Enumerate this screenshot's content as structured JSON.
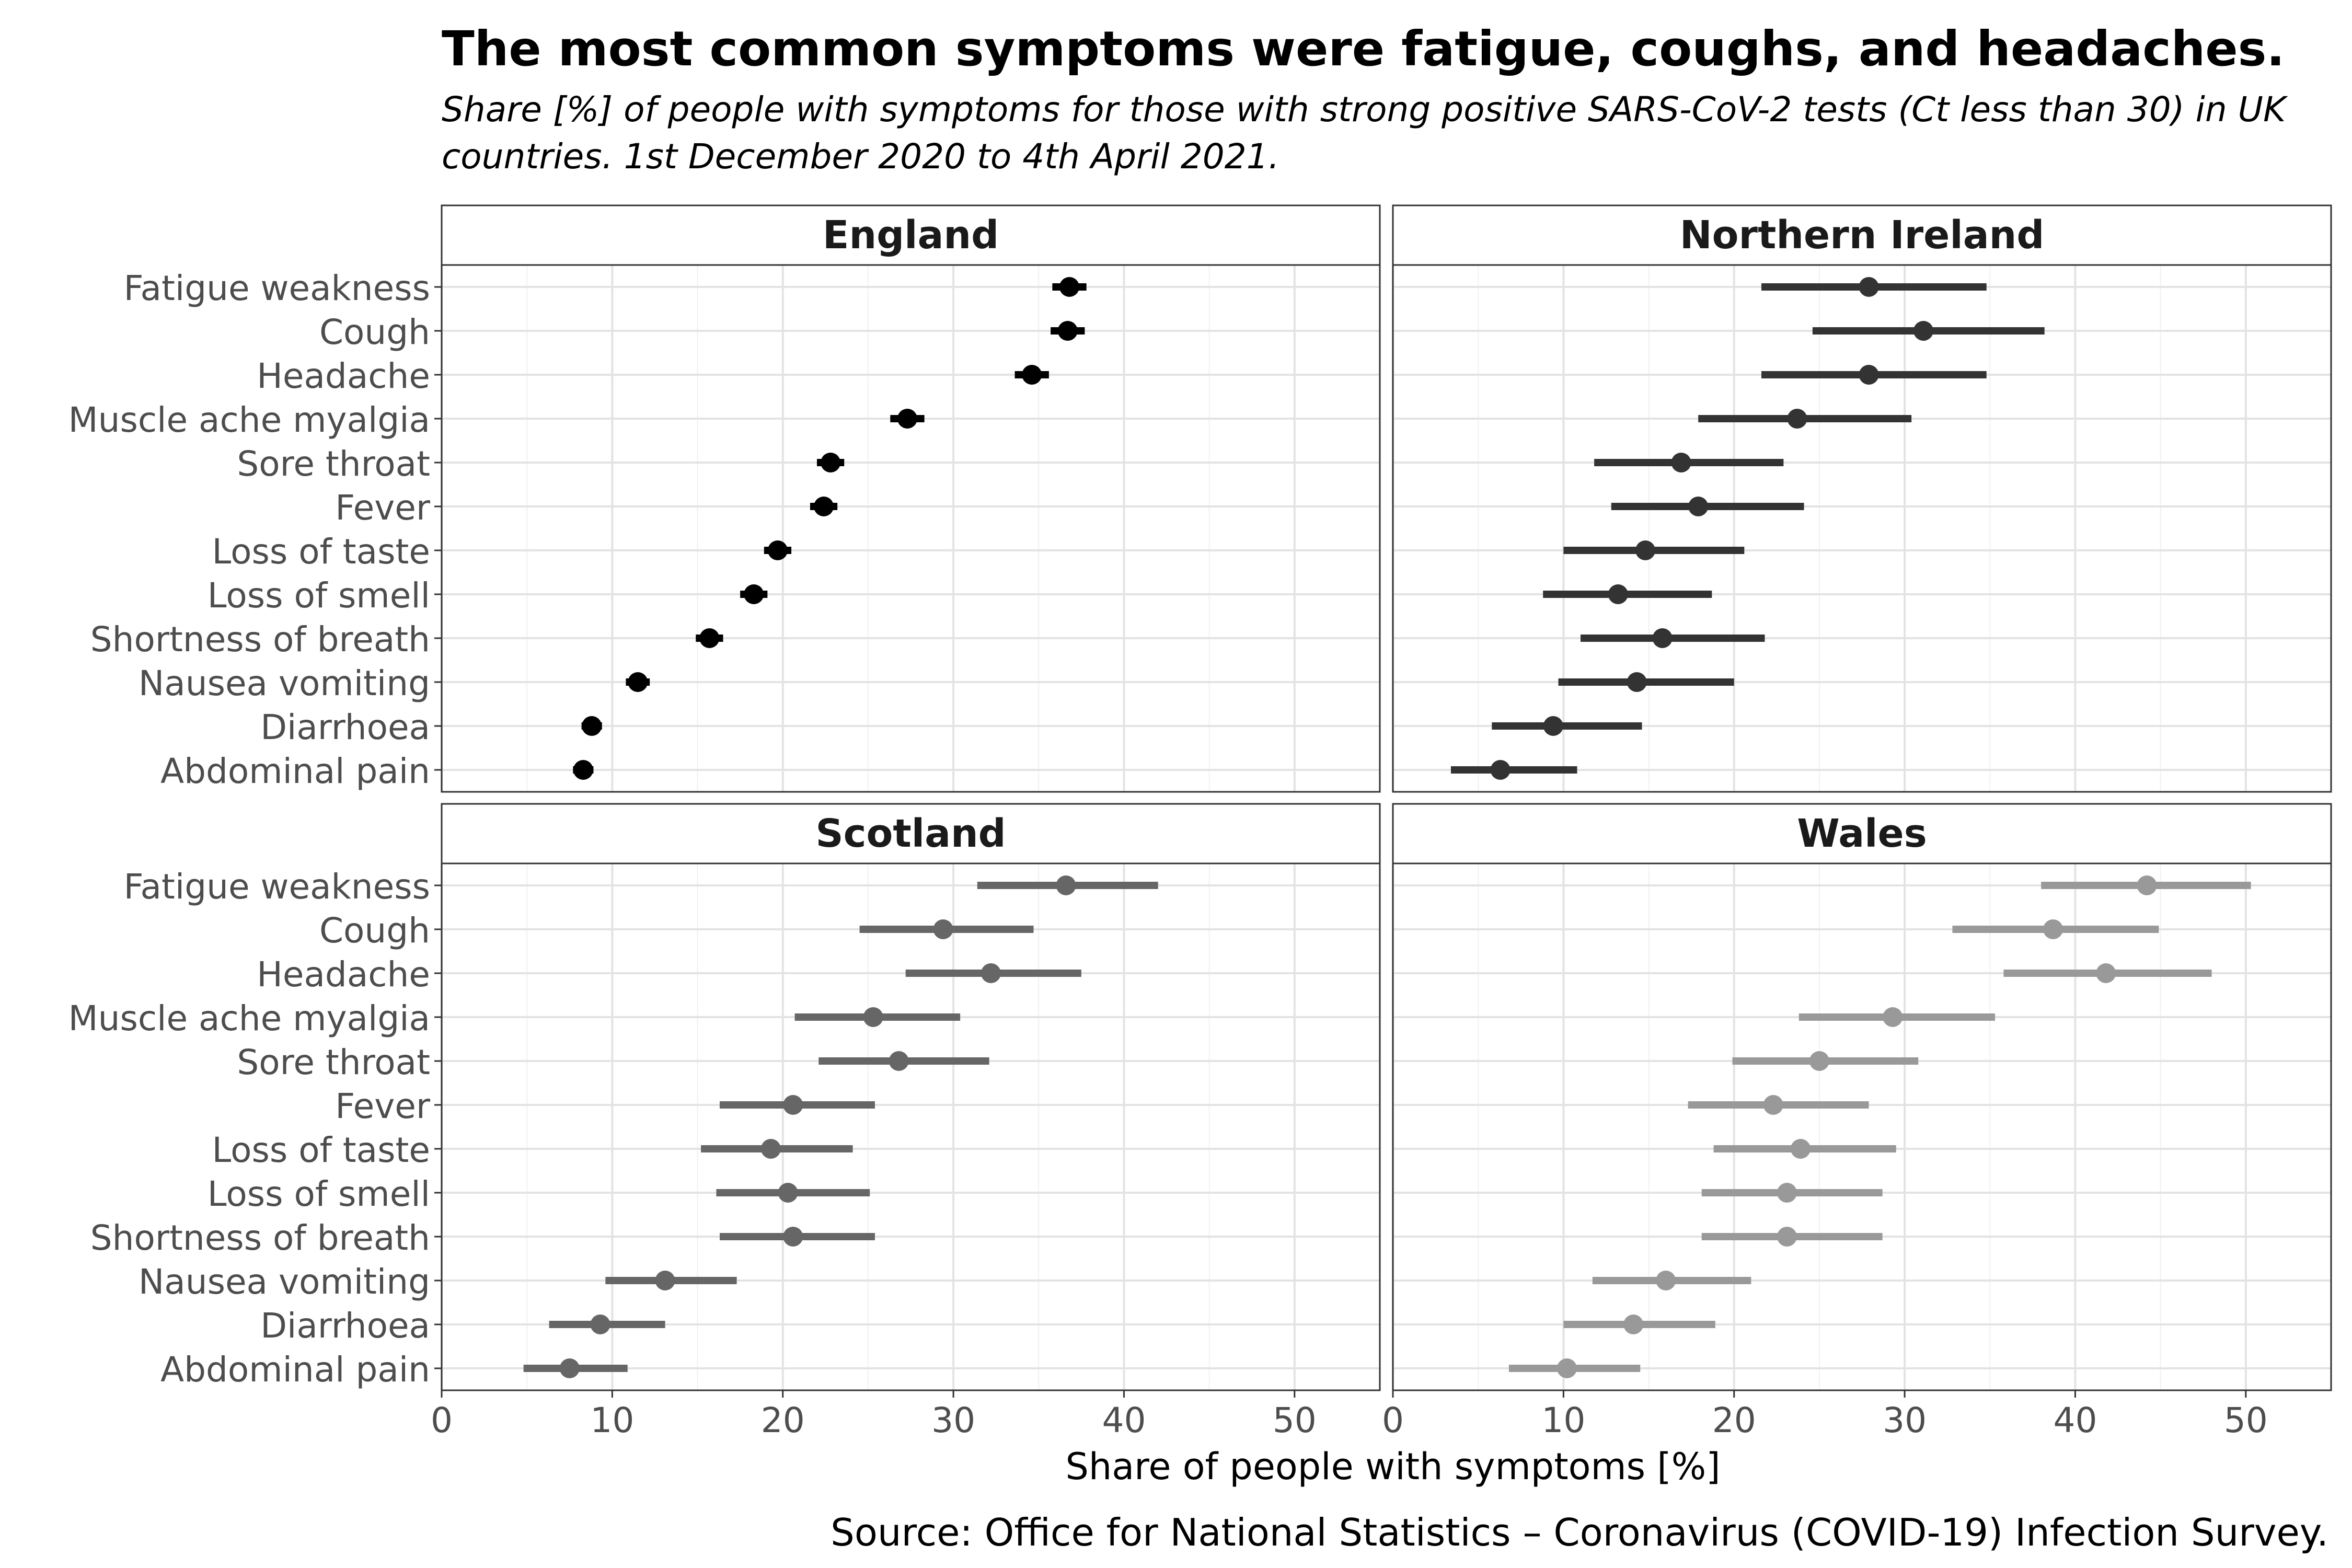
{
  "title": "The most common symptoms were fatigue, coughs, and headaches.",
  "subtitle": "Share [%] of people with symptoms for those with strong positive SARS-CoV-2 tests (Ct less than 30) in UK countries. 1st December 2020 to 4th April 2021.",
  "source": "Source: Office for National Statistics – Coronavirus (COVID-19) Infection Survey.",
  "chart_data": {
    "type": "dot-errorbar",
    "xlabel": "Share of people with symptoms [%]",
    "xlim": [
      0,
      55
    ],
    "xticks": [
      0,
      10,
      20,
      30,
      40,
      50
    ],
    "grid": true,
    "categories": [
      "Fatigue weakness",
      "Cough",
      "Headache",
      "Muscle ache myalgia",
      "Sore throat",
      "Fever",
      "Loss of taste",
      "Loss of smell",
      "Shortness of breath",
      "Nausea vomiting",
      "Diarrhoea",
      "Abdominal pain"
    ],
    "panels": [
      {
        "name": "England",
        "color": "#000000",
        "values": [
          36.8,
          36.7,
          34.6,
          27.3,
          22.8,
          22.4,
          19.7,
          18.3,
          15.7,
          11.5,
          8.8,
          8.3
        ],
        "lower": [
          35.8,
          35.7,
          33.6,
          26.3,
          22.0,
          21.6,
          18.9,
          17.5,
          14.9,
          10.8,
          8.2,
          7.7
        ],
        "upper": [
          37.8,
          37.7,
          35.6,
          28.3,
          23.6,
          23.2,
          20.5,
          19.1,
          16.5,
          12.2,
          9.4,
          8.9
        ]
      },
      {
        "name": "Northern Ireland",
        "color": "#333333",
        "values": [
          27.9,
          31.1,
          27.9,
          23.7,
          16.9,
          17.9,
          14.8,
          13.2,
          15.8,
          14.3,
          9.4,
          6.3
        ],
        "lower": [
          21.6,
          24.6,
          21.6,
          17.9,
          11.8,
          12.8,
          10.0,
          8.8,
          11.0,
          9.7,
          5.8,
          3.4
        ],
        "upper": [
          34.8,
          38.2,
          34.8,
          30.4,
          22.9,
          24.1,
          20.6,
          18.7,
          21.8,
          20.0,
          14.6,
          10.8
        ]
      },
      {
        "name": "Scotland",
        "color": "#666666",
        "values": [
          36.6,
          29.4,
          32.2,
          25.3,
          26.8,
          20.6,
          19.3,
          20.3,
          20.6,
          13.1,
          9.3,
          7.5
        ],
        "lower": [
          31.4,
          24.5,
          27.2,
          20.7,
          22.1,
          16.3,
          15.2,
          16.1,
          16.3,
          9.6,
          6.3,
          4.8
        ],
        "upper": [
          42.0,
          34.7,
          37.5,
          30.4,
          32.1,
          25.4,
          24.1,
          25.1,
          25.4,
          17.3,
          13.1,
          10.9
        ]
      },
      {
        "name": "Wales",
        "color": "#999999",
        "values": [
          44.2,
          38.7,
          41.8,
          29.3,
          25.0,
          22.3,
          23.9,
          23.1,
          23.1,
          16.0,
          14.1,
          10.2
        ],
        "lower": [
          38.0,
          32.8,
          35.8,
          23.8,
          19.9,
          17.3,
          18.8,
          18.1,
          18.1,
          11.7,
          10.0,
          6.8
        ],
        "upper": [
          50.3,
          44.9,
          48.0,
          35.3,
          30.8,
          27.9,
          29.5,
          28.7,
          28.7,
          21.0,
          18.9,
          14.5
        ]
      }
    ]
  }
}
